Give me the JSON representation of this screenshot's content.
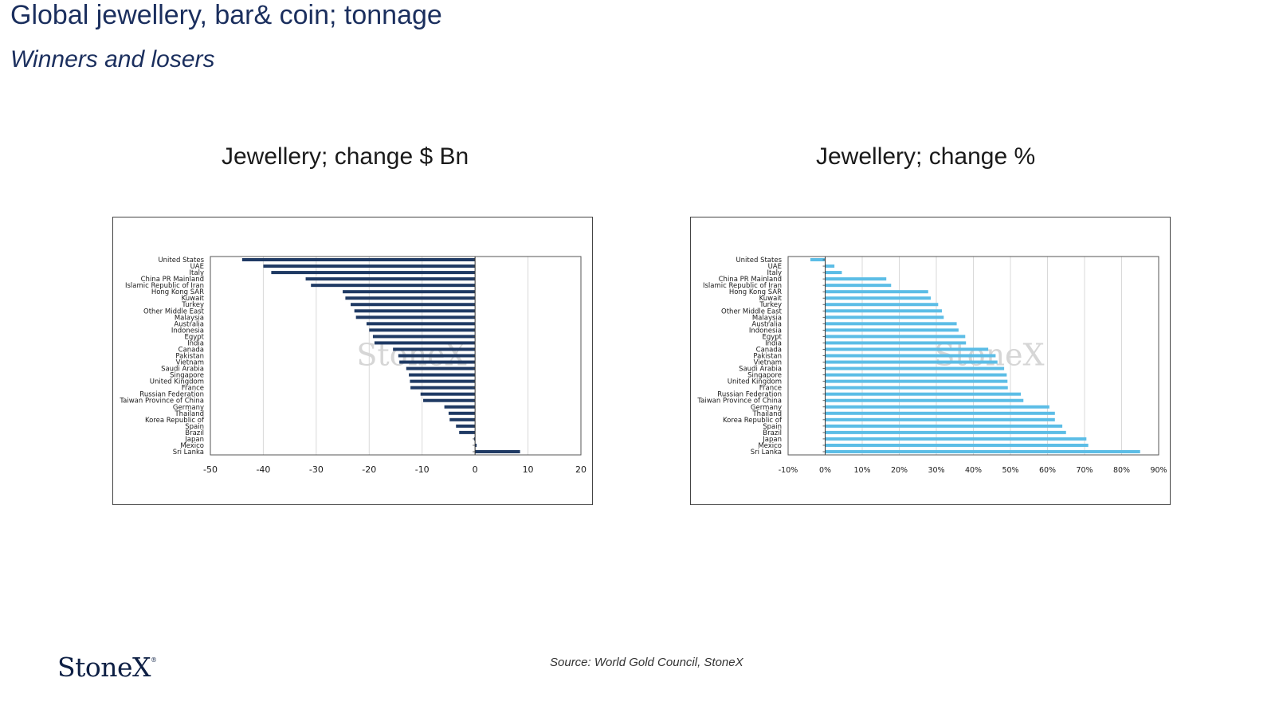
{
  "header": {
    "title": "Global jewellery, bar& coin; tonnage",
    "subtitle": "Winners and losers"
  },
  "footer": {
    "source": "Source: World Gold Council, StoneX",
    "logo_text": "StoneX",
    "logo_mark": "®"
  },
  "colors": {
    "left_bar": "#1f3a64",
    "right_bar": "#5cbde6",
    "grid": "#d9d9d9",
    "watermark": "#d6d6d6"
  },
  "chart_data": [
    {
      "type": "bar",
      "orientation": "horizontal",
      "title": "Jewellery;  change $ Bn",
      "categories": [
        "United States",
        "UAE",
        "Italy",
        "China PR Mainland",
        "Islamic Republic of Iran",
        "Hong Kong SAR",
        "Kuwait",
        "Turkey",
        "Other Middle East",
        "Malaysia",
        "Australia",
        "Indonesia",
        "Egypt",
        "India",
        "Canada",
        "Pakistan",
        "Vietnam",
        "Saudi Arabia",
        "Singapore",
        "United Kingdom",
        "France",
        "Russian Federation",
        "Taiwan Province of China",
        "Germany",
        "Thailand",
        "Korea Republic of",
        "Spain",
        "Brazil",
        "Japan",
        "Mexico",
        "Sri Lanka"
      ],
      "values": [
        -44,
        -40,
        -38.5,
        -32,
        -31,
        -25,
        -24.5,
        -23.5,
        -22.8,
        -22.5,
        -20.5,
        -20,
        -19.3,
        -19,
        -15.5,
        -14.5,
        -14.3,
        -13,
        -12.5,
        -12.3,
        -12.2,
        -10.3,
        -9.8,
        -5.8,
        -5,
        -4.8,
        -3.6,
        -3,
        -0.2,
        0.3,
        8.5
      ],
      "xlim": [
        -50,
        20
      ],
      "xticks": [
        -50,
        -40,
        -30,
        -20,
        -10,
        0,
        10,
        20
      ],
      "xtick_labels": [
        "-50",
        "-40",
        "-30",
        "-20",
        "-10",
        "0",
        "10",
        "20"
      ],
      "watermark": "StoneX",
      "grid": true,
      "legend": "none"
    },
    {
      "type": "bar",
      "orientation": "horizontal",
      "title": "Jewellery;  change %",
      "categories": [
        "United States",
        "UAE",
        "Italy",
        "China PR Mainland",
        "Islamic Republic of Iran",
        "Hong Kong SAR",
        "Kuwait",
        "Turkey",
        "Other Middle East",
        "Malaysia",
        "Australia",
        "Indonesia",
        "Egypt",
        "India",
        "Canada",
        "Pakistan",
        "Vietnam",
        "Saudi Arabia",
        "Singapore",
        "United Kingdom",
        "France",
        "Russian Federation",
        "Taiwan Province of China",
        "Germany",
        "Thailand",
        "Korea Republic of",
        "Spain",
        "Brazil",
        "Japan",
        "Mexico",
        "Sri Lanka"
      ],
      "values": [
        -4,
        2.5,
        4.5,
        16.5,
        17.8,
        27.8,
        28.5,
        30.5,
        31.5,
        32,
        35.5,
        36,
        37.8,
        38,
        44,
        46,
        46.5,
        48.3,
        49,
        49.2,
        49.3,
        52.8,
        53.5,
        60.5,
        62,
        62,
        64,
        65,
        70.5,
        71,
        85
      ],
      "xlim": [
        -10,
        90
      ],
      "xticks": [
        -10,
        0,
        10,
        20,
        30,
        40,
        50,
        60,
        70,
        80,
        90
      ],
      "xtick_labels": [
        "-10%",
        "0%",
        "10%",
        "20%",
        "30%",
        "40%",
        "50%",
        "60%",
        "70%",
        "80%",
        "90%"
      ],
      "watermark": "StoneX",
      "grid": true,
      "legend": "none"
    }
  ]
}
